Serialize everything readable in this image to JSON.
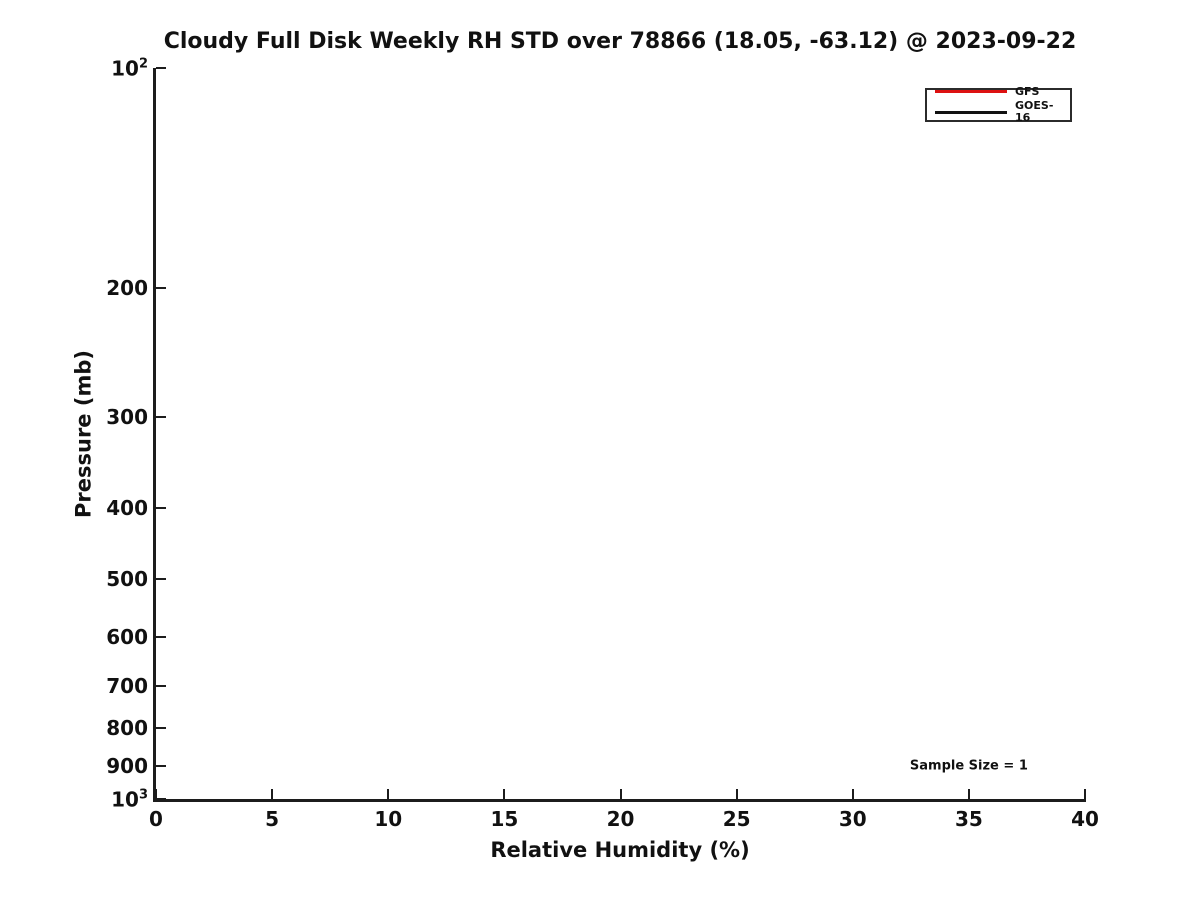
{
  "figure": {
    "background": "#ffffff",
    "axis_color": "#1c1c1c",
    "text_color": "#111111"
  },
  "chart_data": {
    "type": "line",
    "title": "Cloudy Full Disk Weekly RH STD over 78866 (18.05, -63.12) @ 2023-09-22",
    "xlabel": "Relative Humidity (%)",
    "ylabel": "Pressure (mb)",
    "xlim": [
      0,
      40
    ],
    "x_ticks": [
      0,
      5,
      10,
      15,
      20,
      25,
      30,
      35,
      40
    ],
    "y_scale": "log",
    "y_inverted": true,
    "ylim": [
      100,
      1000
    ],
    "y_ticks": [
      100,
      200,
      300,
      400,
      500,
      600,
      700,
      800,
      900,
      1000
    ],
    "y_tick_labels": [
      "10^2",
      "200",
      "300",
      "400",
      "500",
      "600",
      "700",
      "800",
      "900",
      "10^3"
    ],
    "grid": false,
    "legend": {
      "position": "top-right",
      "entries": [
        {
          "label": "GFS",
          "color": "#dd1111"
        },
        {
          "label": "GOES-16",
          "color": "#111111"
        }
      ]
    },
    "series": [
      {
        "name": "GFS",
        "color": "#dd1111",
        "x": [],
        "y": []
      },
      {
        "name": "GOES-16",
        "color": "#111111",
        "x": [],
        "y": []
      }
    ],
    "annotations": [
      {
        "text": "Sample Size = 1",
        "x": 35,
        "y": 900
      }
    ]
  }
}
